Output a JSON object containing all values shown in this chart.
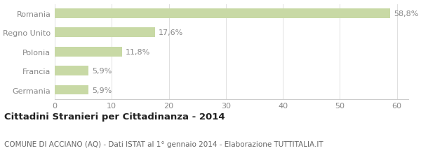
{
  "categories": [
    "Germania",
    "Francia",
    "Polonia",
    "Regno Unito",
    "Romania"
  ],
  "values": [
    5.9,
    5.9,
    11.8,
    17.6,
    58.8
  ],
  "labels": [
    "5,9%",
    "5,9%",
    "11,8%",
    "17,6%",
    "58,8%"
  ],
  "bar_color": "#c8d9a5",
  "background_color": "#ffffff",
  "xlim": [
    0,
    62
  ],
  "xticks": [
    0,
    10,
    20,
    30,
    40,
    50,
    60
  ],
  "title": "Cittadini Stranieri per Cittadinanza - 2014",
  "subtitle": "COMUNE DI ACCIANO (AQ) - Dati ISTAT al 1° gennaio 2014 - Elaborazione TUTTITALIA.IT",
  "title_fontsize": 9.5,
  "subtitle_fontsize": 7.5,
  "ytick_fontsize": 8,
  "xtick_fontsize": 8,
  "value_fontsize": 8,
  "bar_height": 0.5,
  "grid_color": "#e0e0e0",
  "tick_color": "#888888",
  "text_color": "#222222",
  "subtitle_color": "#666666"
}
